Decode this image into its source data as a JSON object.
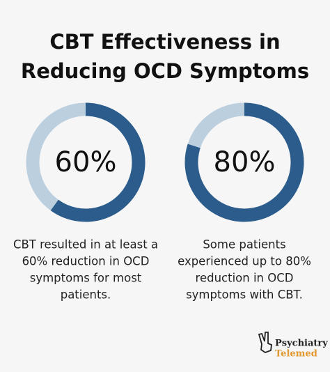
{
  "title": [
    "CBT Effectiveness in",
    "Reducing OCD Symptoms"
  ],
  "chart_data": [
    {
      "type": "donut",
      "values": [
        60
      ],
      "value_labels": [
        "60%"
      ],
      "ylim": [
        0,
        100
      ],
      "color": "#2b5c8c",
      "track_color": "#bccfdf",
      "caption": [
        "CBT resulted in at least a",
        "60% reduction in OCD",
        "symptoms for most",
        "patients."
      ]
    },
    {
      "type": "donut",
      "values": [
        80
      ],
      "value_labels": [
        "80%"
      ],
      "ylim": [
        0,
        100
      ],
      "color": "#2b5c8c",
      "track_color": "#bccfdf",
      "caption": [
        "Some patients",
        "experienced up to 80%",
        "reduction in OCD",
        "symptoms with CBT."
      ]
    }
  ],
  "logo": {
    "line1": "Psychiatry",
    "line2": "Telemed"
  }
}
